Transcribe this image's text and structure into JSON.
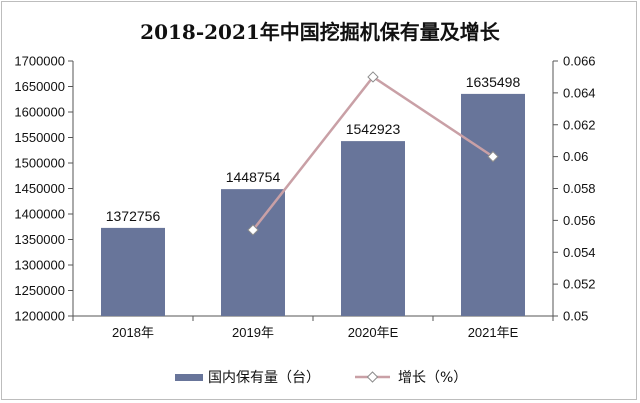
{
  "chart_data": {
    "type": "bar",
    "title": "2018-2021年中国挖掘机保有量及增长",
    "categories": [
      "2018年",
      "2019年",
      "2020年E",
      "2021年E"
    ],
    "series": [
      {
        "name": "国内保有量（台）",
        "kind": "bar",
        "axis": "left",
        "color": "#68759a",
        "values": [
          1372756,
          1448754,
          1542923,
          1635498
        ]
      },
      {
        "name": "增长（%）",
        "kind": "line",
        "axis": "right",
        "color": "#c9a0a6",
        "values": [
          null,
          0.0554,
          0.065,
          0.06
        ]
      }
    ],
    "y_left": {
      "range": [
        1200000,
        1700000
      ],
      "ticks": [
        "1200000",
        "1250000",
        "1300000",
        "1350000",
        "1400000",
        "1450000",
        "1500000",
        "1550000",
        "1600000",
        "1650000",
        "1700000"
      ]
    },
    "y_right": {
      "range": [
        0.05,
        0.066
      ],
      "ticks": [
        "0.05",
        "0.052",
        "0.054",
        "0.056",
        "0.058",
        "0.06",
        "0.062",
        "0.064",
        "0.066"
      ]
    },
    "data_labels": [
      "1372756",
      "1448754",
      "1542923",
      "1635498"
    ],
    "legend": {
      "position": "bottom"
    },
    "grid": false
  }
}
